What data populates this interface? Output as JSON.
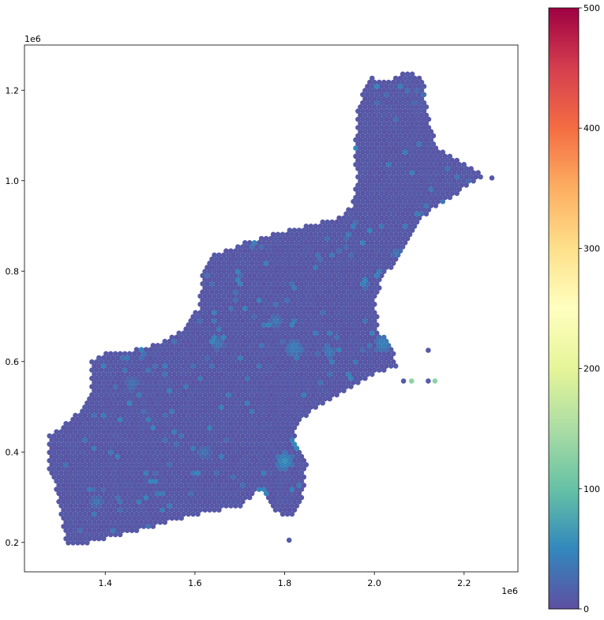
{
  "chart_data": {
    "type": "scatter",
    "subtype": "hexagonal-point map (colored by value)",
    "title": "",
    "xlabel": "",
    "ylabel": "",
    "x_multiplier_label": "1e6",
    "y_multiplier_label": "1e6",
    "xlim": [
      1.22,
      2.32
    ],
    "ylim": [
      0.135,
      1.3
    ],
    "x_ticks": [
      "1.4",
      "1.6",
      "1.8",
      "2.0",
      "2.2"
    ],
    "y_ticks": [
      "0.2",
      "0.4",
      "0.6",
      "0.8",
      "1.0",
      "1.2"
    ],
    "colorbar": {
      "colormap": "Spectral_r",
      "min": 0,
      "max": 500,
      "ticks": [
        "0",
        "100",
        "200",
        "300",
        "400",
        "500"
      ]
    },
    "point_spacing": 0.0105,
    "background_value": 5,
    "region_outline": [
      [
        1.275,
        0.44
      ],
      [
        1.3,
        0.455
      ],
      [
        1.34,
        0.49
      ],
      [
        1.37,
        0.525
      ],
      [
        1.365,
        0.6
      ],
      [
        1.4,
        0.62
      ],
      [
        1.46,
        0.625
      ],
      [
        1.5,
        0.635
      ],
      [
        1.56,
        0.66
      ],
      [
        1.61,
        0.72
      ],
      [
        1.615,
        0.8
      ],
      [
        1.63,
        0.83
      ],
      [
        1.7,
        0.86
      ],
      [
        1.78,
        0.885
      ],
      [
        1.85,
        0.9
      ],
      [
        1.92,
        0.92
      ],
      [
        1.95,
        0.945
      ],
      [
        1.96,
        1.0
      ],
      [
        1.955,
        1.07
      ],
      [
        1.965,
        1.17
      ],
      [
        1.99,
        1.23
      ],
      [
        2.03,
        1.22
      ],
      [
        2.055,
        1.235
      ],
      [
        2.085,
        1.24
      ],
      [
        2.11,
        1.22
      ],
      [
        2.12,
        1.15
      ],
      [
        2.14,
        1.07
      ],
      [
        2.18,
        1.05
      ],
      [
        2.25,
        1.01
      ],
      [
        2.21,
        0.99
      ],
      [
        2.18,
        0.965
      ],
      [
        2.12,
        0.93
      ],
      [
        2.09,
        0.9
      ],
      [
        2.05,
        0.83
      ],
      [
        2.02,
        0.78
      ],
      [
        2.0,
        0.74
      ],
      [
        2.01,
        0.67
      ],
      [
        2.04,
        0.63
      ],
      [
        2.05,
        0.59
      ],
      [
        2.0,
        0.57
      ],
      [
        1.95,
        0.545
      ],
      [
        1.88,
        0.5
      ],
      [
        1.83,
        0.47
      ],
      [
        1.82,
        0.44
      ],
      [
        1.85,
        0.37
      ],
      [
        1.84,
        0.29
      ],
      [
        1.81,
        0.255
      ],
      [
        1.77,
        0.27
      ],
      [
        1.75,
        0.32
      ],
      [
        1.7,
        0.28
      ],
      [
        1.6,
        0.26
      ],
      [
        1.45,
        0.22
      ],
      [
        1.35,
        0.195
      ],
      [
        1.31,
        0.2
      ],
      [
        1.295,
        0.3
      ],
      [
        1.27,
        0.38
      ]
    ],
    "hotspots": [
      {
        "x": 2.03,
        "y": 0.56,
        "value": 110,
        "radius": 0.018
      },
      {
        "x": 1.835,
        "y": 0.42,
        "value": 80,
        "radius": 0.02
      },
      {
        "x": 1.8,
        "y": 0.38,
        "value": 60,
        "radius": 0.02
      },
      {
        "x": 1.75,
        "y": 0.31,
        "value": 70,
        "radius": 0.015
      },
      {
        "x": 2.02,
        "y": 0.64,
        "value": 50,
        "radius": 0.02
      },
      {
        "x": 1.82,
        "y": 0.63,
        "value": 45,
        "radius": 0.02
      },
      {
        "x": 1.65,
        "y": 0.64,
        "value": 40,
        "radius": 0.015
      },
      {
        "x": 1.78,
        "y": 0.69,
        "value": 40,
        "radius": 0.015
      },
      {
        "x": 1.9,
        "y": 0.62,
        "value": 45,
        "radius": 0.015
      },
      {
        "x": 1.46,
        "y": 0.55,
        "value": 35,
        "radius": 0.015
      },
      {
        "x": 1.62,
        "y": 0.4,
        "value": 35,
        "radius": 0.015
      },
      {
        "x": 1.38,
        "y": 0.29,
        "value": 35,
        "radius": 0.015
      },
      {
        "x": 2.05,
        "y": 0.84,
        "value": 40,
        "radius": 0.012
      },
      {
        "x": 2.04,
        "y": 0.54,
        "value": 40,
        "radius": 0.012
      }
    ],
    "outlier_points": [
      {
        "x": 2.083,
        "y": 0.557,
        "value": 130
      },
      {
        "x": 2.135,
        "y": 0.557,
        "value": 130
      },
      {
        "x": 2.12,
        "y": 0.557,
        "value": 10
      },
      {
        "x": 2.065,
        "y": 0.557,
        "value": 10
      },
      {
        "x": 2.12,
        "y": 0.625,
        "value": 10
      },
      {
        "x": 1.81,
        "y": 0.205,
        "value": 10
      },
      {
        "x": 2.262,
        "y": 1.006,
        "value": 10
      }
    ]
  }
}
